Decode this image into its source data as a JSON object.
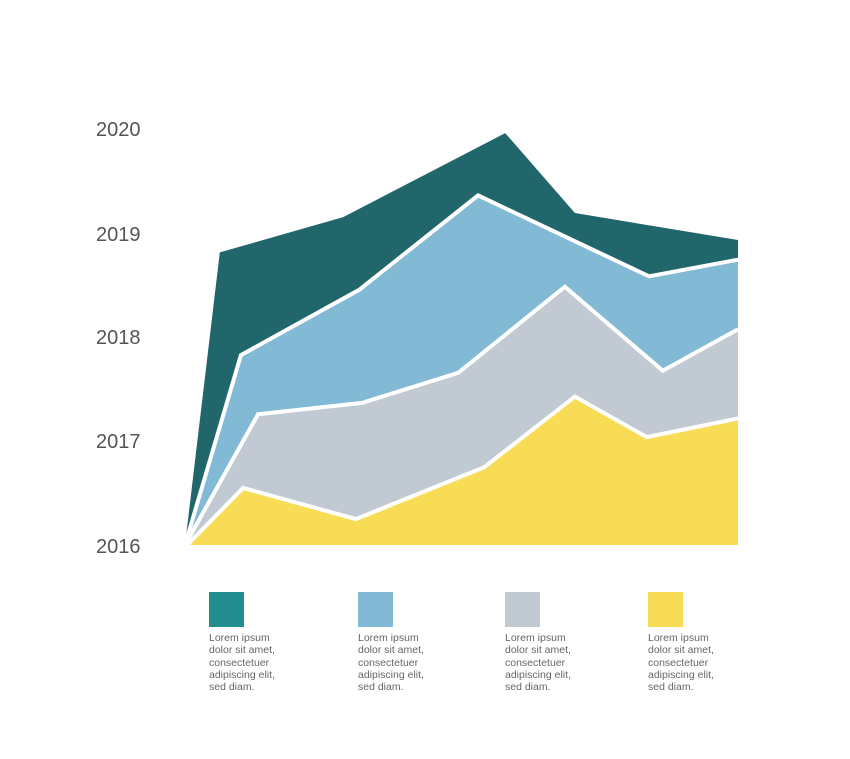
{
  "chart_data": {
    "type": "area",
    "stacked_visual": true,
    "title": "",
    "xlabel": "",
    "ylabel": "",
    "ylim": [
      2016,
      2020
    ],
    "xlim": [
      0,
      100
    ],
    "yticks": [
      "2016",
      "2017",
      "2018",
      "2019",
      "2020"
    ],
    "grid": false,
    "legend_position": "bottom",
    "series": [
      {
        "name": "Lorem ipsum dolor sit amet, consectetuer adipiscing elit, sed diam.",
        "color": "#21666b",
        "legend_color": "#218d8f",
        "points": [
          [
            0,
            2016
          ],
          [
            6.3,
            2018.82
          ],
          [
            28.6,
            2019.16
          ],
          [
            57.9,
            2019.97
          ],
          [
            70.5,
            2019.2
          ],
          [
            100,
            2018.94
          ]
        ]
      },
      {
        "name": "Lorem ipsum dolor sit amet, consectetuer adipiscing elit, sed diam.",
        "color": "#82b9d4",
        "legend_color": "#82b9d4",
        "points": [
          [
            0,
            2016
          ],
          [
            10.1,
            2017.83
          ],
          [
            31.5,
            2018.46
          ],
          [
            53.0,
            2019.37
          ],
          [
            83.9,
            2018.59
          ],
          [
            100,
            2018.75
          ]
        ]
      },
      {
        "name": "Lorem ipsum dolor sit amet, consectetuer adipiscing elit, sed diam.",
        "color": "#c1cad3",
        "legend_color": "#c1cad3",
        "points": [
          [
            0,
            2016
          ],
          [
            13.2,
            2017.26
          ],
          [
            32.0,
            2017.37
          ],
          [
            49.4,
            2017.66
          ],
          [
            68.7,
            2018.49
          ],
          [
            86.4,
            2017.68
          ],
          [
            100,
            2018.08
          ]
        ]
      },
      {
        "name": "Lorem ipsum dolor sit amet, consectetuer adipiscing elit, sed diam.",
        "color": "#f9dc55",
        "legend_color": "#f9dc55",
        "points": [
          [
            0.4,
            2016
          ],
          [
            10.5,
            2016.55
          ],
          [
            30.9,
            2016.25
          ],
          [
            54.1,
            2016.75
          ],
          [
            70.5,
            2017.43
          ],
          [
            83.5,
            2017.04
          ],
          [
            100,
            2017.22
          ]
        ]
      }
    ]
  },
  "legend_text": [
    "Lorem ipsum\ndolor sit amet,\nconsectetuer\nadipiscing elit,\nsed diam.",
    "Lorem ipsum\ndolor sit amet,\nconsectetuer\nadipiscing elit,\nsed diam.",
    "Lorem ipsum\ndolor sit amet,\nconsectetuer\nadipiscing elit,\nsed diam.",
    "Lorem ipsum\ndolor sit amet,\nconsectetuer\nadipiscing elit,\nsed diam."
  ]
}
